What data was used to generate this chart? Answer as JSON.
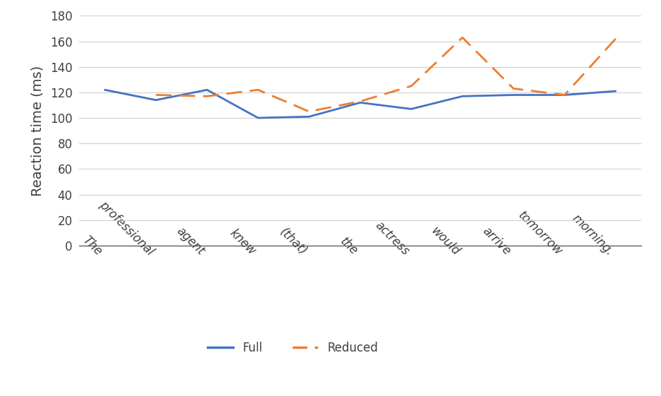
{
  "words": [
    "The",
    "professional",
    "agent",
    "knew",
    "(that)",
    "the",
    "actress",
    "would",
    "arrive",
    "tomorrow",
    "morning."
  ],
  "full_values": [
    122,
    114,
    122,
    100,
    101,
    112,
    107,
    117,
    118,
    118,
    121
  ],
  "reduced_values": [
    118,
    117,
    122,
    105,
    113,
    125,
    163,
    123,
    118,
    162
  ],
  "full_color": "#4472C4",
  "reduced_color": "#ED7D31",
  "ylabel": "Reaction time (ms)",
  "ylim": [
    0,
    180
  ],
  "yticks": [
    0,
    20,
    40,
    60,
    80,
    100,
    120,
    140,
    160,
    180
  ],
  "legend_full": "Full",
  "legend_reduced": "Reduced",
  "full_linewidth": 2.0,
  "reduced_linewidth": 2.0,
  "background_color": "#ffffff",
  "grid_color": "#d0d0d0",
  "ylabel_fontsize": 14,
  "tick_fontsize": 12
}
